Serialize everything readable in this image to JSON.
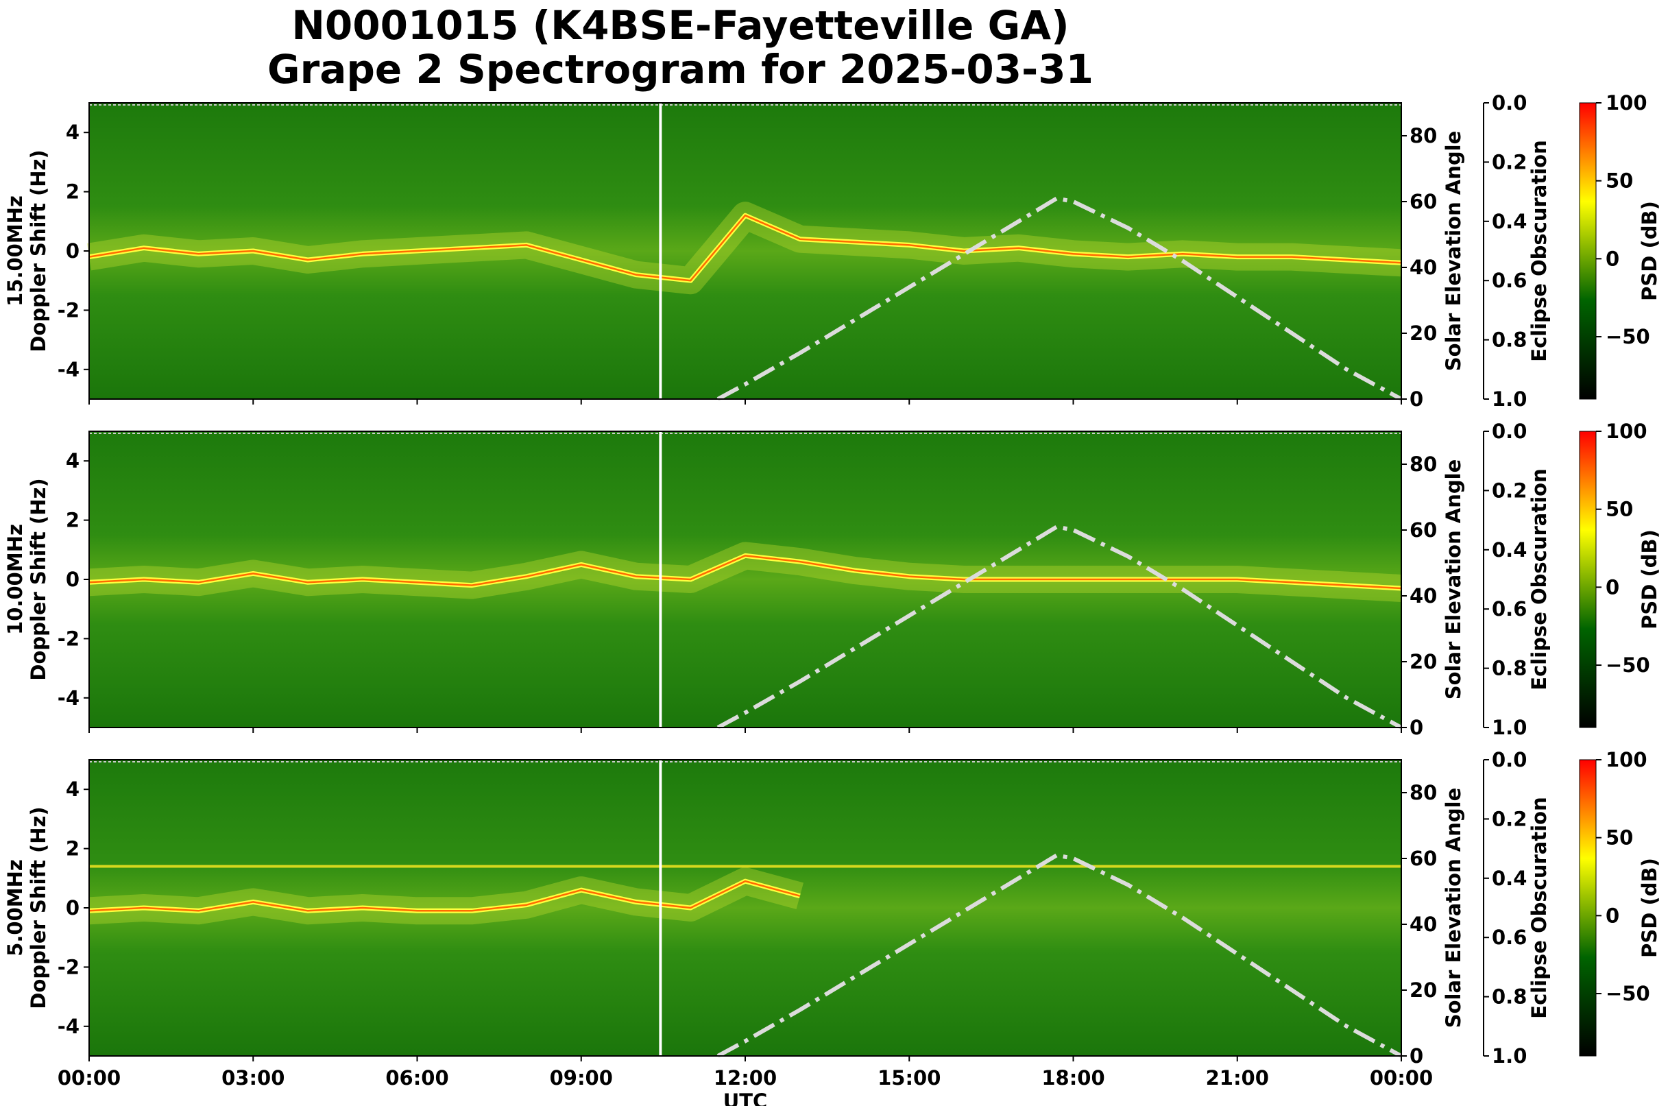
{
  "chart_data": {
    "type": "heatmap",
    "title": "N0001015 (K4BSE-Fayetteville GA)",
    "subtitle": "Grape 2 Spectrogram for 2025-03-31",
    "xlabel": "UTC",
    "x_ticks": [
      "00:00",
      "03:00",
      "06:00",
      "09:00",
      "12:00",
      "15:00",
      "18:00",
      "21:00",
      "00:00"
    ],
    "x_range_hours": [
      0,
      24
    ],
    "y_ticks": [
      4,
      2,
      0,
      -2,
      -4
    ],
    "y_range": [
      -5,
      5
    ],
    "elev_ticks": [
      80,
      60,
      40,
      20,
      0
    ],
    "elev_range": [
      0,
      90
    ],
    "eclipse_label": "Eclipse Obscuration",
    "eclipse_ticks": [
      "0.0",
      "0.2",
      "0.4",
      "0.6",
      "0.8",
      "1.0"
    ],
    "elev_label": "Solar Elevation Angle",
    "colorbar_label": "PSD (dB)",
    "colorbar_ticks": [
      100,
      50,
      0,
      -50
    ],
    "colorbar_range": [
      -90,
      100
    ],
    "colorbar_colors": [
      "#000000",
      "#006400",
      "#ffff00",
      "#ff0000"
    ],
    "marker_line_hour": 10.45,
    "solar_elevation": {
      "hours": [
        11.5,
        12,
        13,
        14,
        15,
        16,
        17,
        17.7,
        18,
        19,
        20,
        21,
        22,
        23,
        24
      ],
      "degrees": [
        0,
        4.5,
        14,
        24,
        34,
        44,
        54,
        61,
        60,
        52,
        42,
        31,
        20,
        9,
        0
      ],
      "color": "#dcdcdc"
    },
    "panels": [
      {
        "name": "15.00MHz",
        "ylabel_freq": "15.00MHz",
        "ylabel": "Doppler Shift (Hz)",
        "trace_hours": [
          0,
          1,
          2,
          3,
          4,
          5,
          8,
          9,
          10,
          11,
          12,
          13,
          14,
          15,
          16,
          17,
          18,
          19,
          20,
          21,
          22,
          23,
          24
        ],
        "trace_hz": [
          -0.2,
          0.1,
          -0.1,
          0.0,
          -0.3,
          -0.1,
          0.2,
          -0.3,
          -0.8,
          -1.0,
          1.2,
          0.4,
          0.3,
          0.2,
          0.0,
          0.1,
          -0.1,
          -0.2,
          -0.1,
          -0.2,
          -0.2,
          -0.3,
          -0.4
        ]
      },
      {
        "name": "10.00MHz",
        "ylabel_freq": "10.00MHz",
        "ylabel": "Doppler Shift (Hz)",
        "trace_hours": [
          0,
          1,
          2,
          3,
          4,
          5,
          6,
          7,
          8,
          9,
          10,
          11,
          12,
          13,
          14,
          15,
          16,
          17,
          18,
          19,
          20,
          21,
          22,
          23,
          24
        ],
        "trace_hz": [
          -0.1,
          0.0,
          -0.1,
          0.2,
          -0.1,
          0.0,
          -0.1,
          -0.2,
          0.1,
          0.5,
          0.1,
          0.0,
          0.8,
          0.6,
          0.3,
          0.1,
          0.0,
          0.0,
          0.0,
          0.0,
          0.0,
          0.0,
          -0.1,
          -0.2,
          -0.3
        ]
      },
      {
        "name": "5.00MHz",
        "ylabel_freq": "5.00MHz",
        "ylabel": "Doppler Shift (Hz)",
        "trace_hours": [
          0,
          1,
          2,
          3,
          4,
          5,
          6,
          7,
          8,
          9,
          10,
          11,
          12,
          13
        ],
        "trace_hz": [
          -0.1,
          0.0,
          -0.1,
          0.2,
          -0.1,
          0.0,
          -0.1,
          -0.1,
          0.1,
          0.6,
          0.2,
          0.0,
          0.9,
          0.4
        ],
        "carrier_hz": 1.4
      }
    ]
  }
}
